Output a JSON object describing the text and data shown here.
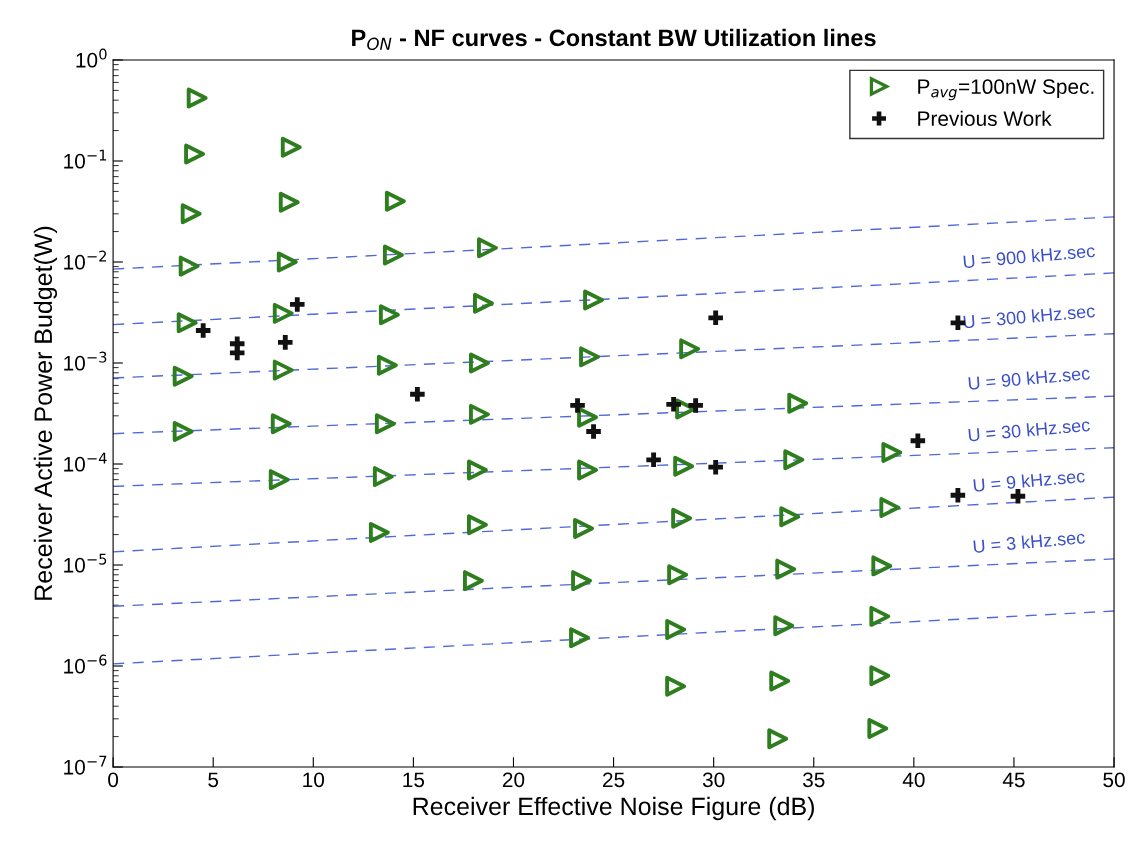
{
  "chart_data": {
    "type": "scatter",
    "title": "P$_{ON}$ - NF curves - Constant BW Utilization lines",
    "xlabel": "Receiver Effective Noise Figure (dB)",
    "ylabel": "Receiver Active Power Budget(W)",
    "log": "y",
    "grid": false,
    "legend": "top right",
    "xlim": [
      0,
      50
    ],
    "xticks": [
      0,
      5,
      10,
      15,
      20,
      25,
      30,
      35,
      40,
      45,
      50
    ],
    "ylim": [
      1e-07,
      1
    ],
    "yticks": [
      {
        "value": 1e-07,
        "label": "10$^{−7}$"
      },
      {
        "value": 1e-06,
        "label": "10$^{−6}$"
      },
      {
        "value": 1e-05,
        "label": "10$^{−5}$"
      },
      {
        "value": 0.0001,
        "label": "10$^{−4}$"
      },
      {
        "value": 0.001,
        "label": "10$^{−3}$"
      },
      {
        "value": 0.01,
        "label": "10$^{−2}$"
      },
      {
        "value": 0.1,
        "label": "10$^{−1}$"
      },
      {
        "value": 1,
        "label": "10$^{0}$"
      }
    ],
    "series": [
      {
        "type": "line",
        "color": "#5068d8",
        "line_style": "dashed",
        "marker": "none",
        "x": [
          0,
          50
        ],
        "values": [
          0.0085,
          0.028
        ]
      },
      {
        "type": "line",
        "color": "#5068d8",
        "line_style": "dashed",
        "marker": "none",
        "x": [
          0,
          50
        ],
        "values": [
          0.0024,
          0.0078
        ],
        "name": "U = 900 kHz.sec"
      },
      {
        "type": "line",
        "color": "#5068d8",
        "line_style": "dashed",
        "marker": "none",
        "x": [
          0,
          50
        ],
        "values": [
          0.00071,
          0.00195
        ],
        "name": "U = 300 kHz.sec"
      },
      {
        "type": "line",
        "color": "#5068d8",
        "line_style": "dashed",
        "marker": "none",
        "x": [
          0,
          50
        ],
        "values": [
          0.0002,
          0.00047
        ],
        "name": "U = 90 kHz.sec"
      },
      {
        "type": "line",
        "color": "#5068d8",
        "line_style": "dashed",
        "marker": "none",
        "x": [
          0,
          50
        ],
        "values": [
          6e-05,
          0.000145
        ],
        "name": "U = 30 kHz.sec"
      },
      {
        "type": "line",
        "color": "#5068d8",
        "line_style": "dashed",
        "marker": "none",
        "x": [
          0,
          50
        ],
        "values": [
          1.35e-05,
          4.7e-05
        ],
        "name": "U = 9 kHz.sec"
      },
      {
        "type": "line",
        "color": "#5068d8",
        "line_style": "dashed",
        "marker": "none",
        "x": [
          0,
          50
        ],
        "values": [
          3.9e-06,
          1.15e-05
        ],
        "name": "U = 3 kHz.sec"
      },
      {
        "type": "line",
        "color": "#5068d8",
        "line_style": "dashed",
        "marker": "none",
        "x": [
          0,
          50
        ],
        "values": [
          1.05e-06,
          3.5e-06
        ]
      },
      {
        "name": "P$_{avg}$=100nW Spec.",
        "color": "#2e7d1f",
        "marker": "triangle",
        "x": [
          4.2,
          4.07,
          3.9,
          3.8,
          3.7,
          3.5,
          3.5,
          8.9,
          8.8,
          8.7,
          8.5,
          8.5,
          8.4,
          8.3,
          14.1,
          14.0,
          13.8,
          13.7,
          13.6,
          13.5,
          13.3,
          18.7,
          18.5,
          18.3,
          18.3,
          18.2,
          18.2,
          18.0,
          24.0,
          23.8,
          23.7,
          23.7,
          23.5,
          23.4,
          23.3,
          28.8,
          28.6,
          28.5,
          28.4,
          28.2,
          28.1,
          28.1,
          34.2,
          34.0,
          33.8,
          33.6,
          33.5,
          33.3,
          33.2,
          38.9,
          38.8,
          38.4,
          38.3,
          38.3,
          38.2
        ],
        "values": [
          0.42,
          0.117,
          0.03,
          0.0091,
          0.0025,
          0.00074,
          0.00021,
          0.137,
          0.039,
          0.01,
          0.0031,
          0.00085,
          0.00025,
          7e-05,
          0.04,
          0.0117,
          0.003,
          0.00095,
          0.00025,
          7.5e-05,
          2.1e-05,
          0.0138,
          0.0039,
          0.001,
          0.00031,
          8.7e-05,
          2.5e-05,
          7e-06,
          0.0042,
          0.00115,
          0.00029,
          8.7e-05,
          2.3e-05,
          7e-06,
          1.9e-06,
          0.00138,
          0.00035,
          9.5e-05,
          2.9e-05,
          8e-06,
          2.3e-06,
          6.3e-07,
          0.0004,
          0.00011,
          3e-05,
          9.1e-06,
          2.5e-06,
          7.1e-07,
          1.9e-07,
          0.00013,
          3.7e-05,
          9.8e-06,
          3.1e-06,
          8e-07,
          2.4e-07
        ]
      },
      {
        "name": "Previous Work",
        "color": "#111111",
        "marker": "cross",
        "x": [
          4.5,
          6.2,
          6.2,
          8.6,
          9.2,
          15.2,
          23.2,
          24.0,
          27.0,
          28.0,
          29.1,
          30.1,
          30.1,
          40.2,
          42.2,
          42.2,
          45.2
        ],
        "values": [
          0.0021,
          0.00155,
          0.00126,
          0.0016,
          0.0038,
          0.00049,
          0.00038,
          0.00021,
          0.00011,
          0.00039,
          0.00038,
          0.0028,
          9.3e-05,
          0.00017,
          0.0025,
          4.9e-05,
          4.8e-05
        ]
      }
    ]
  }
}
